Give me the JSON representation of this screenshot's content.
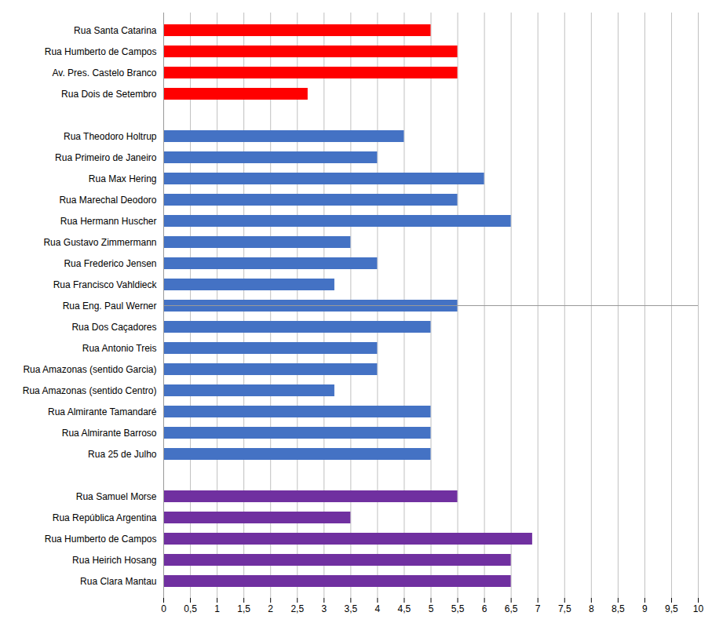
{
  "chart_data": {
    "type": "bar",
    "orientation": "horizontal",
    "categories": [
      "Rua Santa Catarina",
      "Rua Humberto de Campos",
      "Av. Pres. Castelo Branco",
      "Rua Dois de Setembro",
      null,
      "Rua Theodoro Holtrup",
      "Rua Primeiro de Janeiro",
      "Rua Max Hering",
      "Rua Marechal Deodoro",
      "Rua Hermann Huscher",
      "Rua Gustavo Zimmermann",
      "Rua Frederico Jensen",
      "Rua Francisco Vahldieck",
      "Rua Eng. Paul Werner",
      "Rua Dos Caçadores",
      "Rua Antonio Treis",
      "Rua Amazonas (sentido Garcia)",
      "Rua Amazonas (sentido Centro)",
      "Rua Almirante Tamandaré",
      "Rua Almirante Barroso",
      "Rua 25 de Julho",
      null,
      "Rua Samuel Morse",
      "Rua República Argentina",
      "Rua Humberto de Campos",
      "Rua Heirich Hosang",
      "Rua Clara Mantau"
    ],
    "values": [
      5.0,
      5.5,
      5.5,
      2.7,
      null,
      4.5,
      4.0,
      6.0,
      5.5,
      6.5,
      3.5,
      4.0,
      3.2,
      5.5,
      5.0,
      4.0,
      4.0,
      3.2,
      5.0,
      5.0,
      5.0,
      null,
      5.5,
      3.5,
      6.9,
      6.5,
      6.5
    ],
    "colors": [
      "#ff0000",
      "#ff0000",
      "#ff0000",
      "#ff0000",
      null,
      "#4472c4",
      "#4472c4",
      "#4472c4",
      "#4472c4",
      "#4472c4",
      "#4472c4",
      "#4472c4",
      "#4472c4",
      "#4472c4",
      "#4472c4",
      "#4472c4",
      "#4472c4",
      "#4472c4",
      "#4472c4",
      "#4472c4",
      "#4472c4",
      null,
      "#7030a0",
      "#7030a0",
      "#7030a0",
      "#7030a0",
      "#7030a0"
    ],
    "xlim": [
      0,
      10
    ],
    "xticks": [
      0,
      {
        "value": 0.5,
        "label": "0,5"
      },
      1,
      {
        "value": 1.5,
        "label": "1,5"
      },
      2,
      {
        "value": 2.5,
        "label": "2,5"
      },
      3,
      {
        "value": 3.5,
        "label": "3,5"
      },
      4,
      {
        "value": 4.5,
        "label": "4,5"
      },
      5,
      {
        "value": 5.5,
        "label": "5,5"
      },
      6,
      {
        "value": 6.5,
        "label": "6,5"
      },
      7,
      {
        "value": 7.5,
        "label": "7,5"
      },
      8,
      {
        "value": 8.5,
        "label": "8,5"
      },
      9,
      {
        "value": 9.5,
        "label": "9,5"
      },
      10
    ],
    "grid": true
  }
}
